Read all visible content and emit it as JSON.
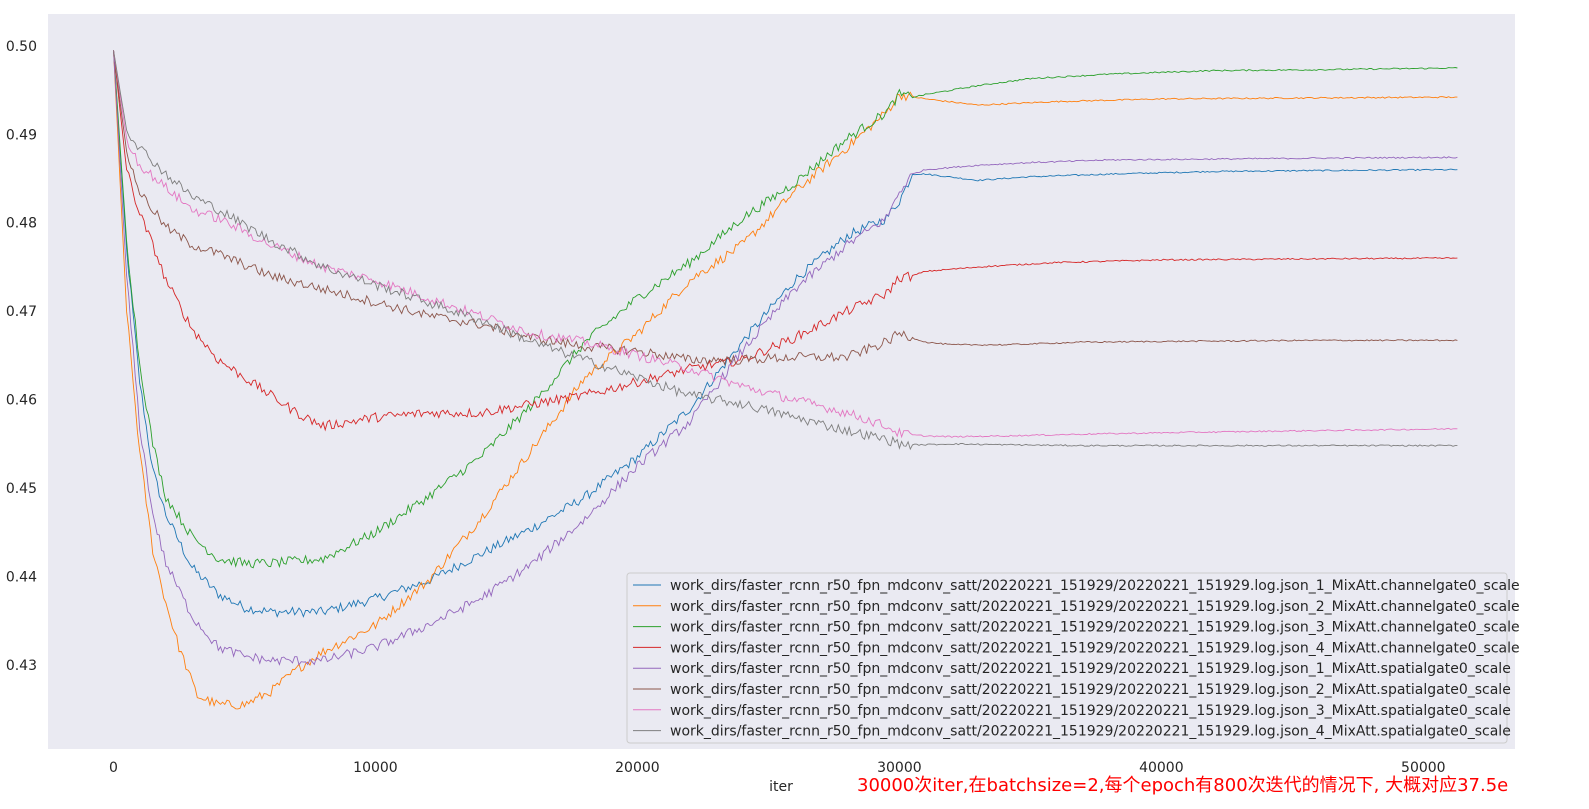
{
  "chart_data": {
    "type": "line",
    "title": "",
    "xlabel": "iter",
    "ylabel": "",
    "xlim": [
      -2500,
      53500
    ],
    "ylim": [
      0.4205,
      0.5036
    ],
    "xticks": [
      0,
      10000,
      20000,
      30000,
      40000,
      50000
    ],
    "xtick_labels": [
      "0",
      "10000",
      "20000",
      "30000",
      "40000",
      "50000"
    ],
    "yticks": [
      0.43,
      0.44,
      0.45,
      0.46,
      0.47,
      0.48,
      0.49,
      0.5
    ],
    "ytick_labels": [
      "0.43",
      "0.44",
      "0.45",
      "0.46",
      "0.47",
      "0.48",
      "0.49",
      "0.50"
    ],
    "grid": false,
    "legend_position": "lower-right",
    "annotation": "30000次iter,在batchsize=2,每个epoch有800次迭代的情况下, 大概对应37.5e",
    "annotation_color": "#ff0000",
    "background_color": "#eaeaf2",
    "series": [
      {
        "name": "work_dirs/faster_rcnn_r50_fpn_mdconv_satt/20220221_151929/20220221_151929.log.json_1_MixAtt.channelgate0_scale",
        "color": "#1f77b4",
        "x": [
          0,
          500,
          1000,
          1500,
          2000,
          3000,
          4000,
          5000,
          6000,
          8000,
          10000,
          12000,
          14000,
          16000,
          18000,
          20000,
          22000,
          24000,
          26000,
          28000,
          29500,
          30000,
          30500,
          31000,
          33000,
          35000,
          38000,
          42000,
          46000,
          51300
        ],
        "y": [
          0.4995,
          0.477,
          0.462,
          0.452,
          0.447,
          0.441,
          0.438,
          0.4365,
          0.436,
          0.436,
          0.4375,
          0.4395,
          0.4425,
          0.4455,
          0.449,
          0.4535,
          0.459,
          0.4665,
          0.4735,
          0.4785,
          0.4805,
          0.4825,
          0.4855,
          0.4855,
          0.4848,
          0.4852,
          0.4855,
          0.4858,
          0.4859,
          0.486
        ]
      },
      {
        "name": "work_dirs/faster_rcnn_r50_fpn_mdconv_satt/20220221_151929/20220221_151929.log.json_2_MixAtt.channelgate0_scale",
        "color": "#ff7f0e",
        "x": [
          0,
          500,
          1000,
          1500,
          2000,
          2500,
          3200,
          4000,
          5000,
          6000,
          7000,
          8000,
          10000,
          12000,
          14000,
          16000,
          18000,
          20000,
          22000,
          24000,
          26000,
          28000,
          29500,
          30000,
          31000,
          33000,
          36000,
          40000,
          45000,
          51300
        ],
        "y": [
          0.4995,
          0.47,
          0.454,
          0.443,
          0.437,
          0.432,
          0.4265,
          0.4255,
          0.4255,
          0.427,
          0.4295,
          0.4315,
          0.4345,
          0.4395,
          0.4465,
          0.4545,
          0.4625,
          0.4675,
          0.4735,
          0.4775,
          0.4835,
          0.4885,
          0.4925,
          0.4945,
          0.494,
          0.4933,
          0.4937,
          0.494,
          0.4941,
          0.4942
        ]
      },
      {
        "name": "work_dirs/faster_rcnn_r50_fpn_mdconv_satt/20220221_151929/20220221_151929.log.json_3_MixAtt.channelgate0_scale",
        "color": "#2ca02c",
        "x": [
          0,
          500,
          1000,
          1500,
          2000,
          3000,
          4000,
          5000,
          6000,
          8000,
          10000,
          12000,
          14000,
          16000,
          18000,
          20000,
          22000,
          24000,
          26000,
          28000,
          29500,
          30000,
          30500,
          31000,
          33000,
          35000,
          38000,
          42000,
          46000,
          51300
        ],
        "y": [
          0.4995,
          0.478,
          0.464,
          0.455,
          0.449,
          0.4445,
          0.442,
          0.4415,
          0.4415,
          0.442,
          0.445,
          0.449,
          0.4535,
          0.4595,
          0.4665,
          0.4715,
          0.4755,
          0.4805,
          0.4845,
          0.4895,
          0.4925,
          0.4945,
          0.4942,
          0.4945,
          0.4955,
          0.4963,
          0.4968,
          0.4972,
          0.4973,
          0.4975
        ]
      },
      {
        "name": "work_dirs/faster_rcnn_r50_fpn_mdconv_satt/20220221_151929/20220221_151929.log.json_4_MixAtt.channelgate0_scale",
        "color": "#d62728",
        "x": [
          0,
          500,
          1000,
          1500,
          2000,
          3000,
          4000,
          5000,
          6000,
          7000,
          8000,
          10000,
          12000,
          14000,
          16000,
          18000,
          20000,
          22000,
          24000,
          26000,
          28000,
          29500,
          30000,
          30500,
          31000,
          33000,
          36000,
          40000,
          45000,
          51300
        ],
        "y": [
          0.4995,
          0.486,
          0.481,
          0.4775,
          0.4735,
          0.468,
          0.4645,
          0.4625,
          0.4605,
          0.4585,
          0.457,
          0.458,
          0.4585,
          0.4585,
          0.4595,
          0.4605,
          0.462,
          0.4635,
          0.4645,
          0.467,
          0.47,
          0.472,
          0.4738,
          0.474,
          0.4745,
          0.475,
          0.4755,
          0.4758,
          0.4759,
          0.476
        ]
      },
      {
        "name": "work_dirs/faster_rcnn_r50_fpn_mdconv_satt/20220221_151929/20220221_151929.log.json_1_MixAtt.spatialgate0_scale",
        "color": "#9467bd",
        "x": [
          0,
          500,
          1000,
          1500,
          2000,
          3000,
          4000,
          5000,
          6000,
          8000,
          10000,
          12000,
          14000,
          16000,
          18000,
          20000,
          22000,
          24000,
          26000,
          28000,
          29500,
          30000,
          30500,
          31000,
          33000,
          35000,
          38000,
          42000,
          46000,
          51300
        ],
        "y": [
          0.4995,
          0.474,
          0.457,
          0.447,
          0.4415,
          0.4355,
          0.432,
          0.431,
          0.4305,
          0.4305,
          0.432,
          0.4345,
          0.4375,
          0.4415,
          0.4465,
          0.4525,
          0.4575,
          0.4655,
          0.4725,
          0.4775,
          0.4805,
          0.4835,
          0.4855,
          0.486,
          0.4865,
          0.4868,
          0.4871,
          0.4872,
          0.4873,
          0.4874
        ]
      },
      {
        "name": "work_dirs/faster_rcnn_r50_fpn_mdconv_satt/20220221_151929/20220221_151929.log.json_2_MixAtt.spatialgate0_scale",
        "color": "#8c564b",
        "x": [
          0,
          500,
          1000,
          2000,
          3000,
          4000,
          6000,
          8000,
          10000,
          12000,
          14000,
          16000,
          18000,
          20000,
          22000,
          24000,
          26000,
          28000,
          29500,
          30000,
          30500,
          31000,
          32000,
          34000,
          37000,
          41000,
          46000,
          51300
        ],
        "y": [
          0.4995,
          0.488,
          0.4835,
          0.4795,
          0.4775,
          0.4765,
          0.474,
          0.4725,
          0.471,
          0.4695,
          0.4685,
          0.467,
          0.466,
          0.4655,
          0.4645,
          0.4645,
          0.4648,
          0.4648,
          0.4665,
          0.4675,
          0.467,
          0.4665,
          0.4662,
          0.4662,
          0.4665,
          0.4666,
          0.4667,
          0.4667
        ]
      },
      {
        "name": "work_dirs/faster_rcnn_r50_fpn_mdconv_satt/20220221_151929/20220221_151929.log.json_3_MixAtt.spatialgate0_scale",
        "color": "#e377c2",
        "x": [
          0,
          500,
          1000,
          2000,
          3000,
          4000,
          6000,
          8000,
          10000,
          12000,
          14000,
          16000,
          18000,
          20000,
          22000,
          24000,
          26000,
          28000,
          29500,
          30000,
          30500,
          31000,
          32000,
          34000,
          37000,
          41000,
          46000,
          51300
        ],
        "y": [
          0.4995,
          0.4895,
          0.4865,
          0.484,
          0.4815,
          0.4805,
          0.4775,
          0.475,
          0.4735,
          0.4715,
          0.4695,
          0.4675,
          0.4665,
          0.465,
          0.4635,
          0.4615,
          0.46,
          0.4585,
          0.457,
          0.4562,
          0.456,
          0.4559,
          0.4558,
          0.4559,
          0.4561,
          0.4563,
          0.4565,
          0.4567
        ]
      },
      {
        "name": "work_dirs/faster_rcnn_r50_fpn_mdconv_satt/20220221_151929/20220221_151929.log.json_4_MixAtt.spatialgate0_scale",
        "color": "#7f7f7f",
        "x": [
          0,
          500,
          1000,
          2000,
          3000,
          4000,
          6000,
          8000,
          10000,
          12000,
          14000,
          16000,
          18000,
          20000,
          22000,
          24000,
          26000,
          28000,
          29500,
          30000,
          30500,
          31000,
          32000,
          34000,
          37000,
          41000,
          46000,
          51300
        ],
        "y": [
          0.4995,
          0.4905,
          0.4885,
          0.4855,
          0.483,
          0.4815,
          0.478,
          0.475,
          0.473,
          0.471,
          0.469,
          0.4665,
          0.4645,
          0.4625,
          0.4605,
          0.4595,
          0.458,
          0.4565,
          0.4555,
          0.455,
          0.4549,
          0.4549,
          0.455,
          0.4549,
          0.4548,
          0.4548,
          0.4548,
          0.4548
        ]
      }
    ]
  }
}
